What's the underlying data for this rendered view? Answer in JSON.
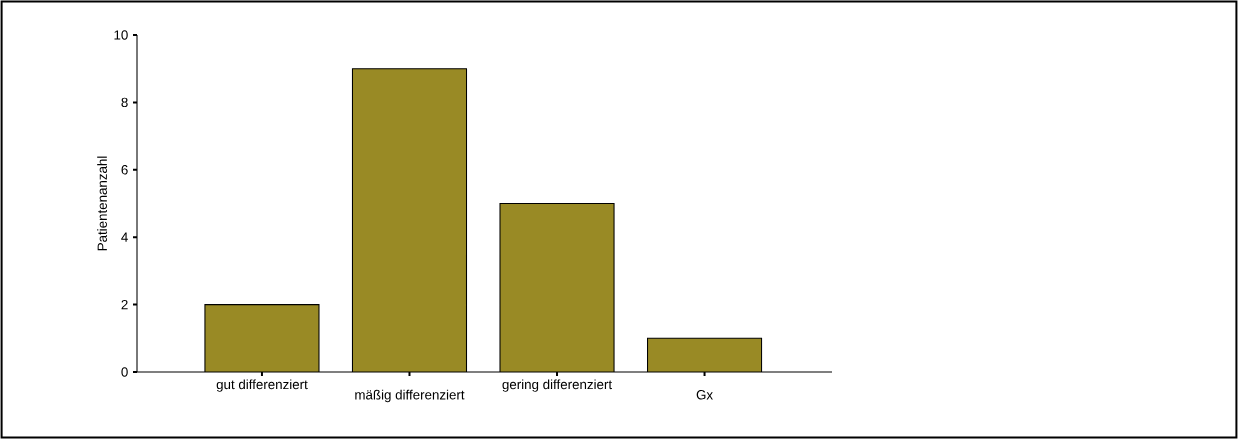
{
  "chart_data": {
    "type": "bar",
    "ylabel": "Patientenanzahl",
    "categories": [
      "gut differenziert",
      "mäßig differenziert",
      "gering differenziert",
      "Gx"
    ],
    "values": [
      2,
      9,
      5,
      1
    ],
    "color": "#998a25",
    "ylim": [
      0,
      10
    ],
    "yticks": [
      0,
      2,
      4,
      6,
      8,
      10
    ],
    "grid": false
  }
}
